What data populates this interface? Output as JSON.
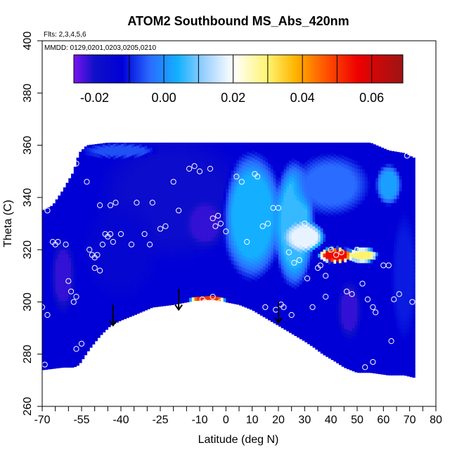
{
  "chart_data": {
    "type": "heatmap",
    "title": "ATOM2 Southbound MS_Abs_420nm",
    "subtitle_lines": [
      "Flts: 2,3,4,5,6",
      "MMDD: 0129,0201,0203,0205,0210"
    ],
    "xlabel": "Latitude (deg N)",
    "ylabel": "Theta (C)",
    "xlim": [
      -70,
      80
    ],
    "ylim": [
      260,
      400
    ],
    "x_ticks": [
      -70,
      -55,
      -40,
      -25,
      -10,
      0,
      10,
      20,
      30,
      40,
      50,
      60,
      70,
      80
    ],
    "x_tick_labels": [
      "-70",
      "-55",
      "-40",
      "-25",
      "-10",
      "0",
      "10",
      "20",
      "30",
      "40",
      "50",
      "60",
      "70",
      "80"
    ],
    "x_minor_ticks": [
      -65,
      -60,
      -50,
      -45,
      -35,
      -30,
      -20,
      -15,
      -5,
      5,
      15,
      25,
      35,
      45,
      55,
      65,
      75
    ],
    "y_ticks": [
      260,
      280,
      300,
      320,
      340,
      360,
      380,
      400
    ],
    "y_tick_labels": [
      "260",
      "280",
      "300",
      "320",
      "340",
      "360",
      "380",
      "400"
    ],
    "colorbar": {
      "range": [
        -0.026,
        0.069
      ],
      "ticks": [
        -0.02,
        0.0,
        0.02,
        0.04,
        0.06
      ],
      "tick_labels": [
        "-0.02",
        "0.00",
        "0.02",
        "0.04",
        "0.06"
      ],
      "divisions": [
        -0.01,
        0.0,
        0.01,
        0.02,
        0.03,
        0.04,
        0.05,
        0.06
      ],
      "colors": [
        {
          "v": -0.026,
          "c": "#7a14f0"
        },
        {
          "v": -0.02,
          "c": "#1010c8"
        },
        {
          "v": -0.012,
          "c": "#0000d6"
        },
        {
          "v": -0.004,
          "c": "#2a6cff"
        },
        {
          "v": 0.004,
          "c": "#14b0ff"
        },
        {
          "v": 0.012,
          "c": "#9fd2ff"
        },
        {
          "v": 0.02,
          "c": "#ffffff"
        },
        {
          "v": 0.03,
          "c": "#fff470"
        },
        {
          "v": 0.038,
          "c": "#ffb400"
        },
        {
          "v": 0.047,
          "c": "#ff5000"
        },
        {
          "v": 0.056,
          "c": "#ee0000"
        },
        {
          "v": 0.069,
          "c": "#9c1414"
        }
      ]
    },
    "domain_top": [
      [
        -70,
        335
      ],
      [
        -66,
        337
      ],
      [
        -62,
        343
      ],
      [
        -58,
        350
      ],
      [
        -56,
        357
      ],
      [
        -53,
        360
      ],
      [
        -45,
        361
      ],
      [
        -30,
        361
      ],
      [
        -15,
        361
      ],
      [
        0,
        361
      ],
      [
        15,
        361
      ],
      [
        30,
        361
      ],
      [
        45,
        361
      ],
      [
        55,
        361
      ],
      [
        62,
        358
      ],
      [
        68,
        357
      ],
      [
        72,
        355
      ]
    ],
    "terrain_top": [
      [
        -56,
        276
      ],
      [
        -52,
        282
      ],
      [
        -48,
        287
      ],
      [
        -44,
        291
      ],
      [
        -40,
        293
      ],
      [
        -35,
        295
      ],
      [
        -28,
        298
      ],
      [
        -20,
        299
      ],
      [
        -12,
        300.5
      ],
      [
        -5,
        301
      ],
      [
        0,
        300
      ],
      [
        5,
        299
      ],
      [
        10,
        297
      ],
      [
        15,
        294
      ],
      [
        20,
        291
      ],
      [
        25,
        288
      ],
      [
        30,
        285
      ],
      [
        33,
        283
      ],
      [
        37,
        280
      ],
      [
        42,
        277
      ],
      [
        45,
        275
      ],
      [
        50,
        273
      ],
      [
        55,
        273
      ],
      [
        62,
        272
      ],
      [
        68,
        272
      ],
      [
        72,
        271
      ]
    ],
    "domain_bottom_left": [
      [
        -70,
        274
      ],
      [
        -62,
        275
      ],
      [
        -58,
        275
      ],
      [
        -56,
        276
      ]
    ],
    "features": [
      {
        "x": -20,
        "y": 340,
        "v": -0.018,
        "rx": 30,
        "ry": 25
      },
      {
        "x": -40,
        "y": 320,
        "v": -0.015,
        "rx": 15,
        "ry": 20
      },
      {
        "x": -8,
        "y": 330,
        "v": -0.022,
        "rx": 8,
        "ry": 10
      },
      {
        "x": -62,
        "y": 310,
        "v": -0.022,
        "rx": 5,
        "ry": 15
      },
      {
        "x": 47,
        "y": 297,
        "v": -0.022,
        "rx": 5,
        "ry": 12
      },
      {
        "x": 10,
        "y": 333,
        "v": 0.004,
        "rx": 12,
        "ry": 25
      },
      {
        "x": 26,
        "y": 330,
        "v": 0.006,
        "rx": 8,
        "ry": 25
      },
      {
        "x": 30,
        "y": 325,
        "v": 0.018,
        "rx": 8,
        "ry": 6
      },
      {
        "x": 42,
        "y": 318,
        "v": 0.055,
        "rx": 7,
        "ry": 3
      },
      {
        "x": 52,
        "y": 318,
        "v": 0.03,
        "rx": 6,
        "ry": 3
      },
      {
        "x": -7,
        "y": 301,
        "v": 0.05,
        "rx": 7,
        "ry": 2
      },
      {
        "x": 68,
        "y": 310,
        "v": -0.01,
        "rx": 5,
        "ry": 25
      },
      {
        "x": 40,
        "y": 345,
        "v": -0.004,
        "rx": 15,
        "ry": 12
      },
      {
        "x": -40,
        "y": 358,
        "v": -0.006,
        "rx": 15,
        "ry": 3
      },
      {
        "x": 62,
        "y": 345,
        "v": 0.002,
        "rx": 5,
        "ry": 8
      }
    ],
    "obs_points": [
      [
        -70,
        298
      ],
      [
        -68,
        295
      ],
      [
        -69,
        276
      ],
      [
        -68,
        335
      ],
      [
        -66,
        323
      ],
      [
        -64,
        323
      ],
      [
        -65,
        322
      ],
      [
        -61,
        322
      ],
      [
        -60,
        308
      ],
      [
        -59,
        304
      ],
      [
        -57,
        302
      ],
      [
        -58,
        300
      ],
      [
        -57,
        282
      ],
      [
        -55,
        284
      ],
      [
        -57,
        353
      ],
      [
        -53,
        346
      ],
      [
        -52,
        320
      ],
      [
        -51,
        318
      ],
      [
        -50,
        313
      ],
      [
        -50,
        317
      ],
      [
        -48,
        312
      ],
      [
        -49,
        318
      ],
      [
        -47,
        322
      ],
      [
        -46,
        326
      ],
      [
        -44,
        326
      ],
      [
        -45,
        325
      ],
      [
        -43,
        323
      ],
      [
        -48,
        337
      ],
      [
        -42,
        338
      ],
      [
        -44,
        337
      ],
      [
        -40,
        326
      ],
      [
        -36,
        322
      ],
      [
        -34,
        338
      ],
      [
        -31,
        326
      ],
      [
        -29,
        322
      ],
      [
        -28,
        338
      ],
      [
        -25,
        328
      ],
      [
        -23,
        329
      ],
      [
        -20,
        346
      ],
      [
        -18,
        335
      ],
      [
        -16,
        298
      ],
      [
        -14,
        351
      ],
      [
        -12,
        352
      ],
      [
        -10,
        350
      ],
      [
        -9,
        301
      ],
      [
        -8,
        300
      ],
      [
        -5,
        302
      ],
      [
        -6,
        351
      ],
      [
        -4,
        329
      ],
      [
        -5,
        332
      ],
      [
        -3,
        333
      ],
      [
        -2,
        330
      ],
      [
        0,
        327
      ],
      [
        4,
        348
      ],
      [
        6,
        346
      ],
      [
        8,
        323
      ],
      [
        11,
        349
      ],
      [
        12,
        348
      ],
      [
        14,
        329
      ],
      [
        16,
        330
      ],
      [
        18,
        336
      ],
      [
        20,
        336
      ],
      [
        21,
        299
      ],
      [
        22,
        298
      ],
      [
        24,
        319
      ],
      [
        26,
        315
      ],
      [
        28,
        316
      ],
      [
        30,
        330
      ],
      [
        31,
        309
      ],
      [
        33,
        298
      ],
      [
        35,
        313
      ],
      [
        36,
        314
      ],
      [
        38,
        310
      ],
      [
        40,
        320
      ],
      [
        42,
        318
      ],
      [
        44,
        319
      ],
      [
        46,
        304
      ],
      [
        48,
        303
      ],
      [
        50,
        320
      ],
      [
        52,
        307
      ],
      [
        54,
        301
      ],
      [
        56,
        298
      ],
      [
        57,
        296
      ],
      [
        60,
        314
      ],
      [
        62,
        314
      ],
      [
        64,
        301
      ],
      [
        66,
        303
      ],
      [
        69,
        356
      ],
      [
        71,
        300
      ],
      [
        63,
        285
      ],
      [
        56,
        277
      ],
      [
        53,
        275
      ],
      [
        38,
        302
      ],
      [
        25,
        295
      ],
      [
        19,
        297
      ],
      [
        15,
        298
      ],
      [
        -2,
        300
      ]
    ],
    "arrows": [
      {
        "x": -43,
        "y_top": 299,
        "y_bottom": 291
      },
      {
        "x": -18,
        "y_top": 305,
        "y_bottom": 297
      },
      {
        "x": 20,
        "y_top": 300,
        "y_bottom": 292
      }
    ]
  }
}
